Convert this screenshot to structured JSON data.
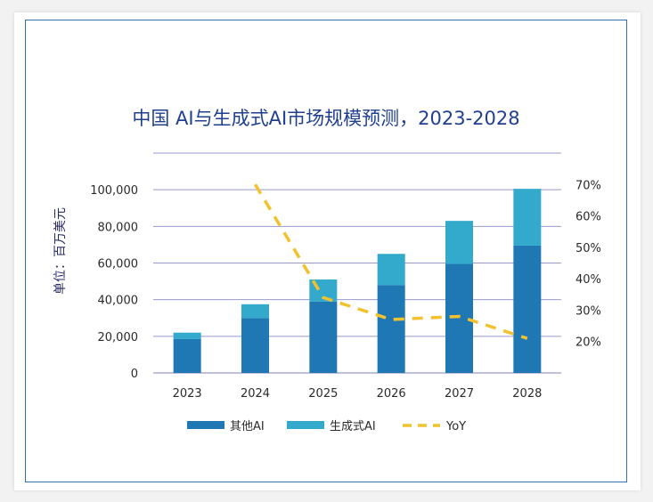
{
  "chart_data": {
    "type": "bar",
    "title": "中国 AI与生成式AI市场规模预测，2023-2028",
    "ylabel": "单位：百万美元",
    "categories": [
      "2023",
      "2024",
      "2025",
      "2026",
      "2027",
      "2028"
    ],
    "series": [
      {
        "name": "其他AI",
        "values": [
          18500,
          30000,
          39000,
          48000,
          59500,
          69500
        ]
      },
      {
        "name": "生成式AI",
        "values": [
          3500,
          7500,
          12000,
          17000,
          23500,
          31000
        ]
      },
      {
        "name": "YoY",
        "type": "line",
        "values": [
          null,
          70,
          34,
          27,
          28,
          21
        ]
      }
    ],
    "ylim": [
      0,
      120000
    ],
    "y_ticks": [
      "0",
      "20,000",
      "40,000",
      "60,000",
      "80,000",
      "100,000"
    ],
    "y2lim": [
      10,
      80
    ],
    "y2_ticks": [
      "20%",
      "30%",
      "40%",
      "50%",
      "60%",
      "70%"
    ],
    "grid": true,
    "legend": "bottom",
    "colors": {
      "other_ai": "#1f77b4",
      "gen_ai": "#33aacb",
      "yoy": "#f2c12e",
      "grid": "#9999cc"
    }
  }
}
